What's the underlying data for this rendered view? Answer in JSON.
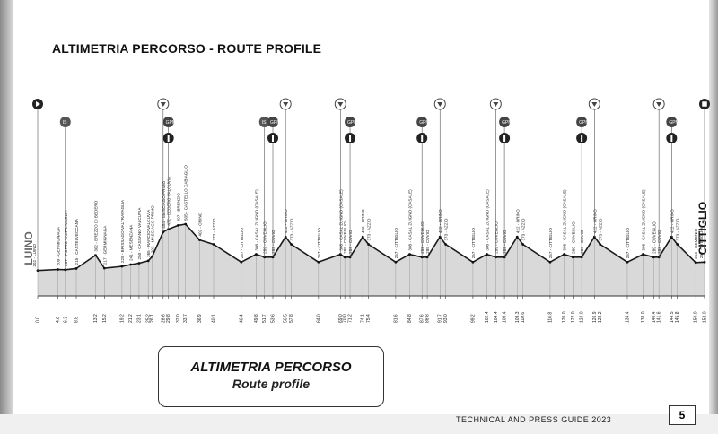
{
  "title": "ALTIMETRIA PERCORSO - ROUTE PROFILE",
  "start_town": "LUINO",
  "finish_town": "CITTIGLIO",
  "box": {
    "line1": "ALTIMETRIA PERCORSO",
    "line2": "Route profile"
  },
  "footer": "TECHNICAL AND PRESS GUIDE 2023",
  "page_number": "5",
  "icons": [
    "start-icon",
    "intermediate-sprint-icon",
    "kom-icon",
    "feed-zone-icon",
    "finish-icon"
  ],
  "chart_data": {
    "type": "area",
    "title": "ALTIMETRIA PERCORSO - ROUTE PROFILE",
    "xlabel": "km",
    "ylabel": "m",
    "points": [
      {
        "km": 0.0,
        "alt": 202,
        "label": "202 - LUINO"
      },
      {
        "km": 4.6,
        "alt": 209,
        "label": "209 - GERMIGNAGA"
      },
      {
        "km": 6.3,
        "alt": 207,
        "label": "207 - PORTO VALTRAVAGLIA"
      },
      {
        "km": 8.8,
        "alt": 215,
        "label": "215 - CASTELVECCANA"
      },
      {
        "km": 13.2,
        "alt": 302,
        "label": "302 - BREZZO DI BEDERO"
      },
      {
        "km": 15.2,
        "alt": 217,
        "label": "217 - GERMIGNAGA"
      },
      {
        "km": 19.2,
        "alt": 229,
        "label": "229 - BRISSAGO VALTRAVAGLIA"
      },
      {
        "km": 21.2,
        "alt": 241,
        "label": "241 - MESENZANA"
      },
      {
        "km": 23.1,
        "alt": 250,
        "label": "250 - CASSANO VALCUVIA"
      },
      {
        "km": 25.2,
        "alt": 265,
        "label": "265 - RANCIO VALCUVIA"
      },
      {
        "km": 26.1,
        "alt": 293,
        "label": "293 - MASCIAGO PRIMO"
      },
      {
        "km": 28.6,
        "alt": 454,
        "label": "454 - MASCIAGO PRIMO"
      },
      {
        "km": 29.8,
        "alt": 472,
        "label": "472 - BEDERO VALCUVIA"
      },
      {
        "km": 32.0,
        "alt": 497,
        "label": "497 - BRENZIO"
      },
      {
        "km": 33.7,
        "alt": 505,
        "label": "505 - CASTELLO CABIAGLIO"
      },
      {
        "km": 36.9,
        "alt": 402,
        "label": "402 - ORINO"
      },
      {
        "km": 40.1,
        "alt": 373,
        "label": "373 - AZZIO"
      },
      {
        "km": 46.4,
        "alt": 257,
        "label": "257 - CITTIGLIO"
      },
      {
        "km": 49.8,
        "alt": 308,
        "label": "308 - CASAL ZUIGNO (CASALE)"
      },
      {
        "km": 51.7,
        "alt": 289,
        "label": "289 - CUVEGLIO"
      },
      {
        "km": 53.6,
        "alt": 289,
        "label": "289 - CUVIO"
      },
      {
        "km": 56.5,
        "alt": 422,
        "label": "422 - ORINO"
      },
      {
        "km": 57.8,
        "alt": 373,
        "label": "373 - AZZIO"
      },
      {
        "km": 64.0,
        "alt": 257,
        "label": "257 - CITTIGLIO"
      },
      {
        "km": 69.0,
        "alt": 308,
        "label": "308 - CASAL ZUIGNO (CASALE)"
      },
      {
        "km": 70.0,
        "alt": 289,
        "label": "289 - CUVEGLIO"
      },
      {
        "km": 71.2,
        "alt": 289,
        "label": "289 - CUVIO"
      },
      {
        "km": 74.1,
        "alt": 422,
        "label": "422 - ORINO"
      },
      {
        "km": 75.4,
        "alt": 373,
        "label": "373 - AZZIO"
      },
      {
        "km": 81.6,
        "alt": 257,
        "label": "257 - CITTIGLIO"
      },
      {
        "km": 84.8,
        "alt": 308,
        "label": "308 - CASAL ZUIGNO (CASALE)"
      },
      {
        "km": 87.6,
        "alt": 289,
        "label": "289 - CUVEGLIO"
      },
      {
        "km": 88.8,
        "alt": 289,
        "label": "289 - CUVIO"
      },
      {
        "km": 91.7,
        "alt": 422,
        "label": "422 - ORINO"
      },
      {
        "km": 93.0,
        "alt": 373,
        "label": "373 - AZZIO"
      },
      {
        "km": 99.2,
        "alt": 257,
        "label": "257 - CITTIGLIO"
      },
      {
        "km": 102.4,
        "alt": 308,
        "label": "308 - CASAL ZUIGNO (CASALE)"
      },
      {
        "km": 104.4,
        "alt": 289,
        "label": "289 - CUVEGLIO"
      },
      {
        "km": 106.4,
        "alt": 289,
        "label": "289 - CUVIO"
      },
      {
        "km": 109.3,
        "alt": 422,
        "label": "422 - ORINO"
      },
      {
        "km": 110.6,
        "alt": 373,
        "label": "373 - AZZIO"
      },
      {
        "km": 116.8,
        "alt": 257,
        "label": "257 - CITTIGLIO"
      },
      {
        "km": 120.0,
        "alt": 308,
        "label": "308 - CASAL ZUIGNO (CASALE)"
      },
      {
        "km": 122.0,
        "alt": 289,
        "label": "289 - CUVEGLIO"
      },
      {
        "km": 124.0,
        "alt": 289,
        "label": "289 - CUVIO"
      },
      {
        "km": 126.9,
        "alt": 422,
        "label": "422 - ORINO"
      },
      {
        "km": 128.2,
        "alt": 373,
        "label": "373 - AZZIO"
      },
      {
        "km": 134.4,
        "alt": 257,
        "label": "257 - CITTIGLIO"
      },
      {
        "km": 138.0,
        "alt": 308,
        "label": "308 - CASAL ZUIGNO (CASALE)"
      },
      {
        "km": 140.4,
        "alt": 289,
        "label": "289 - CUVEGLIO"
      },
      {
        "km": 141.6,
        "alt": 289,
        "label": "289 - CUVIO"
      },
      {
        "km": 144.5,
        "alt": 422,
        "label": "422 - ORINO"
      },
      {
        "km": 145.8,
        "alt": 373,
        "label": "373 - AZZIO"
      },
      {
        "km": 150.0,
        "alt": 254,
        "label": "254 - GEMONIO"
      },
      {
        "km": 152.0,
        "alt": 257,
        "label": "257 - CITTIGLIO"
      }
    ],
    "xlim": [
      0,
      152
    ],
    "ylim": [
      150,
      560
    ],
    "markers": [
      {
        "km": 0.0,
        "type": "start-icon"
      },
      {
        "km": 6.3,
        "type": "intermediate-sprint-icon"
      },
      {
        "km": 28.6,
        "type": "feed-zone-icon"
      },
      {
        "km": 29.8,
        "type": "kom-icon"
      },
      {
        "km": 51.7,
        "type": "intermediate-sprint-icon"
      },
      {
        "km": 53.6,
        "type": "kom-icon"
      },
      {
        "km": 56.5,
        "type": "feed-zone-icon"
      },
      {
        "km": 69.0,
        "type": "feed-zone-icon"
      },
      {
        "km": 71.2,
        "type": "kom-icon"
      },
      {
        "km": 87.6,
        "type": "kom-icon"
      },
      {
        "km": 91.7,
        "type": "feed-zone-icon"
      },
      {
        "km": 104.4,
        "type": "feed-zone-icon"
      },
      {
        "km": 106.4,
        "type": "kom-icon"
      },
      {
        "km": 124.0,
        "type": "kom-icon"
      },
      {
        "km": 126.9,
        "type": "feed-zone-icon"
      },
      {
        "km": 141.6,
        "type": "feed-zone-icon"
      },
      {
        "km": 144.5,
        "type": "kom-icon"
      },
      {
        "km": 152.0,
        "type": "finish-icon"
      }
    ]
  }
}
